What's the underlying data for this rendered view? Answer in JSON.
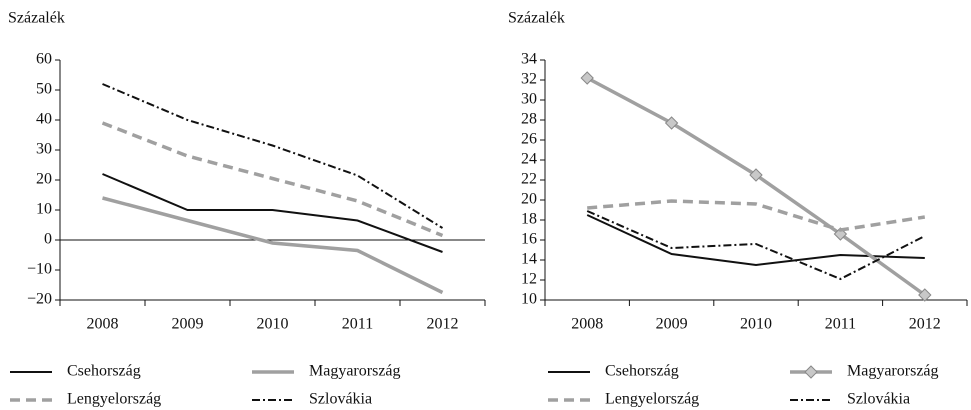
{
  "chart_data": [
    {
      "type": "line",
      "ylabel": "Százalék",
      "categories": [
        "2008",
        "2009",
        "2010",
        "2011",
        "2012"
      ],
      "ylim": [
        -20,
        60
      ],
      "yticks": [
        {
          "value": -20,
          "label": "−20"
        },
        {
          "value": -10,
          "label": "−10"
        },
        0,
        10,
        20,
        30,
        40,
        50,
        60
      ],
      "series": [
        {
          "name": "Csehország",
          "color": "#111111",
          "style": "solid",
          "values": [
            22,
            10,
            10,
            6.5,
            -4
          ]
        },
        {
          "name": "Magyarország",
          "color": "#a0a0a0",
          "style": "solid",
          "values": [
            14,
            6.5,
            -1,
            -3.5,
            -17.5
          ]
        },
        {
          "name": "Lengyelország",
          "color": "#a0a0a0",
          "style": "dashed",
          "values": [
            39,
            28,
            20.5,
            13,
            1.5
          ]
        },
        {
          "name": "Szlovákia",
          "color": "#111111",
          "style": "dashdot",
          "values": [
            52,
            40,
            31.5,
            21.5,
            4
          ]
        }
      ]
    },
    {
      "type": "line",
      "ylabel": "Százalék",
      "categories": [
        "2008",
        "2009",
        "2010",
        "2011",
        "2012"
      ],
      "ylim": [
        10,
        34
      ],
      "yticks": [
        10,
        12,
        14,
        16,
        18,
        20,
        22,
        24,
        26,
        28,
        30,
        32,
        34
      ],
      "series": [
        {
          "name": "Csehország",
          "color": "#111111",
          "style": "solid",
          "values": [
            18.5,
            14.6,
            13.5,
            14.5,
            14.2
          ]
        },
        {
          "name": "Magyarország",
          "color": "#a0a0a0",
          "style": "solid",
          "marker": "diamond",
          "values": [
            32.2,
            27.7,
            22.5,
            16.6,
            10.5
          ]
        },
        {
          "name": "Lengyelország",
          "color": "#a0a0a0",
          "style": "dashed",
          "values": [
            19.2,
            19.9,
            19.6,
            17.0,
            18.3
          ]
        },
        {
          "name": "Szlovákia",
          "color": "#111111",
          "style": "dashdot",
          "values": [
            18.9,
            15.2,
            15.6,
            12.1,
            16.4
          ]
        }
      ]
    }
  ]
}
